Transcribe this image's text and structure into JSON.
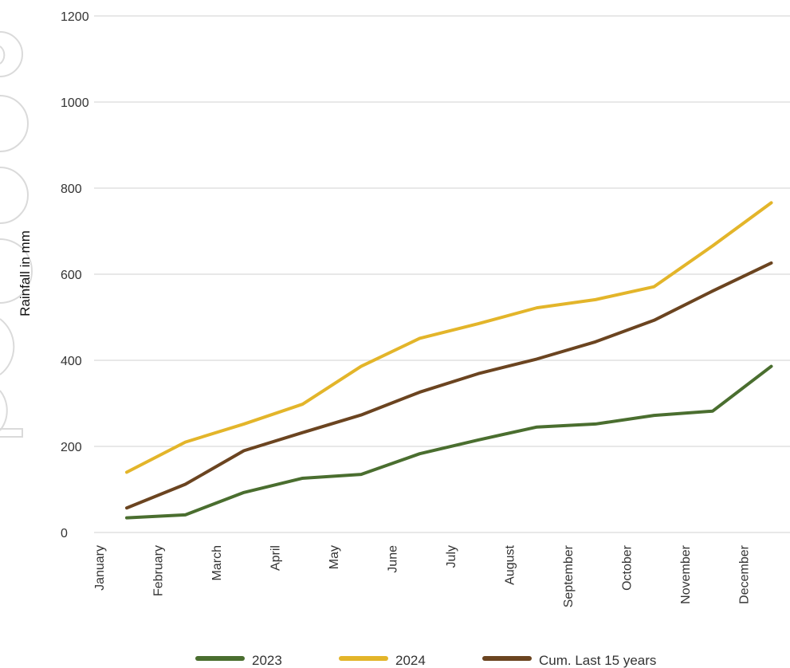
{
  "chart_data": {
    "type": "line",
    "ylabel": "Rainfall in mm",
    "xlabel": "",
    "ylim": [
      0,
      1200
    ],
    "y_ticks": [
      "0",
      "200",
      "400",
      "600",
      "800",
      "1000",
      "1200"
    ],
    "grid": "horizontal",
    "categories": [
      "January",
      "February",
      "March",
      "April",
      "May",
      "June",
      "July",
      "August",
      "September",
      "October",
      "November",
      "December"
    ],
    "series": [
      {
        "name": "2023",
        "color": "#4a6e2f",
        "values": [
          34,
          41,
          93,
          126,
          135,
          183,
          215,
          245,
          252,
          272,
          282,
          386
        ]
      },
      {
        "name": "2024",
        "color": "#e3b52a",
        "values": [
          140,
          210,
          252,
          298,
          386,
          451,
          485,
          522,
          541,
          571,
          666,
          766
        ]
      },
      {
        "name": "Cum. Last 15 years",
        "color": "#6b4420",
        "values": [
          57,
          112,
          190,
          232,
          273,
          326,
          369,
          403,
          443,
          493,
          561,
          626
        ]
      }
    ],
    "legend_position": "bottom"
  }
}
